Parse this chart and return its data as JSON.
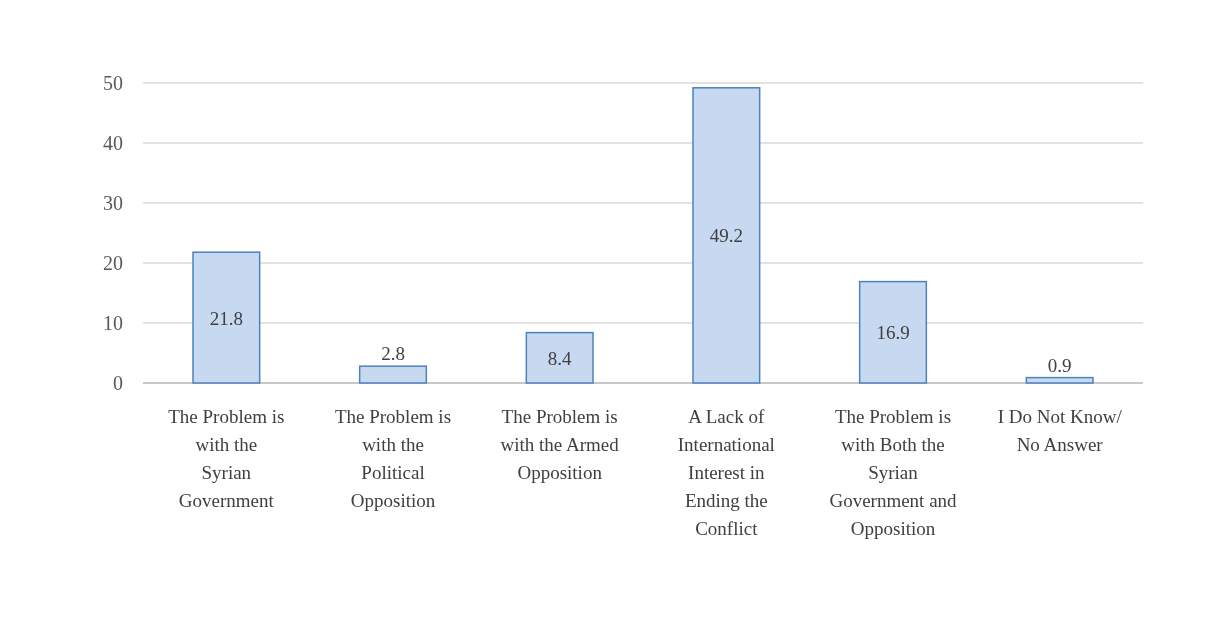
{
  "chart_data": {
    "type": "bar",
    "categories": [
      "The Problem is with the Syrian Government",
      "The Problem is with the Political Opposition",
      "The Problem is with the Armed Opposition",
      "A Lack of International Interest in Ending the Conflict",
      "The Problem is with Both the Syrian Government and Opposition",
      "I Do Not Know/ No Answer"
    ],
    "values": [
      21.8,
      2.8,
      8.4,
      49.2,
      16.9,
      0.9
    ],
    "color": "#c6d9f1",
    "ylim": [
      0,
      50
    ],
    "yticks": [
      0,
      10,
      20,
      30,
      40,
      50
    ],
    "grid": "y",
    "data_labels": true
  }
}
